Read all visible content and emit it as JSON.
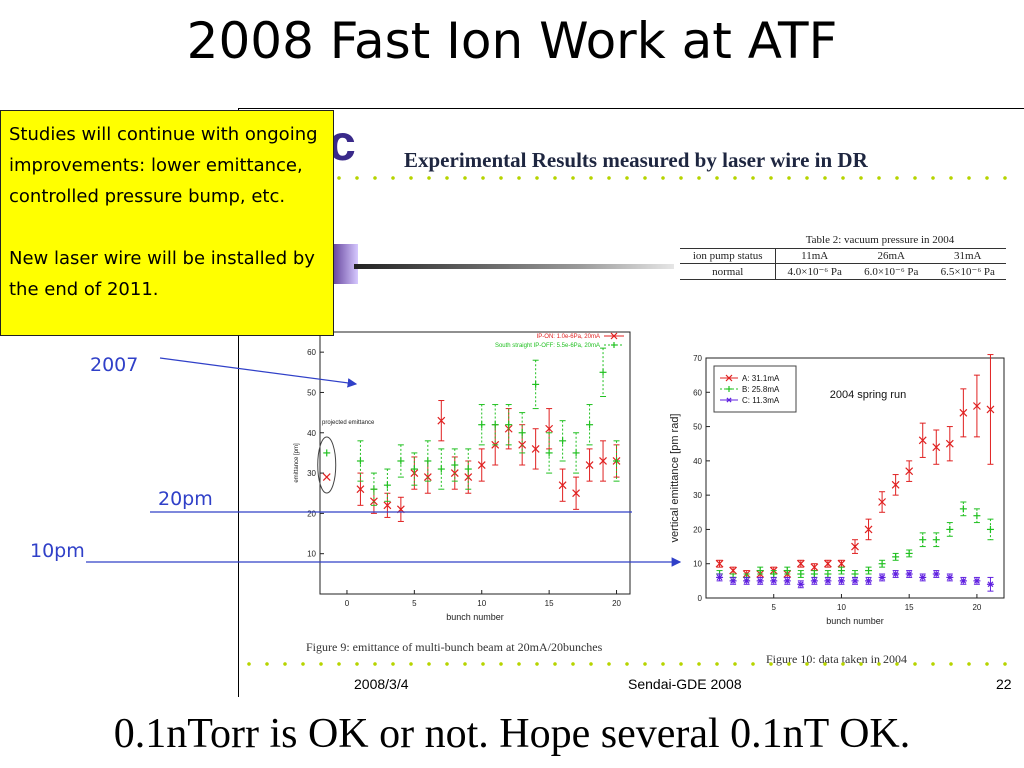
{
  "slide": {
    "title": "2008 Fast Ion Work at ATF",
    "bottom_text": "0.1nTorr is OK or not. Hope several 0.1nT OK."
  },
  "callout": {
    "paragraph1": "Studies will continue with ongoing improvements: lower emittance, controlled pressure bump, etc.",
    "paragraph2": "New laser wire will be installed by the end of 2011."
  },
  "annotations": {
    "label_2007": "2007",
    "label_20pm": "20pm",
    "label_10pm": "10pm"
  },
  "embedded_slide": {
    "header": "Experimental Results measured by laser wire in DR",
    "footer_date": "2008/3/4",
    "footer_event": "Sendai-GDE 2008",
    "page_number": "22",
    "fig9_caption": "Figure 9: emittance of multi-bunch beam at 20mA/20bunches",
    "fig10_caption": "Figure 10: data taken in 2004"
  },
  "vacuum_table": {
    "caption": "Table 2: vacuum pressure in 2004",
    "headers": [
      "ion pump status",
      "11mA",
      "26mA",
      "31mA"
    ],
    "row": [
      "normal",
      "4.0×10⁻⁶ Pa",
      "6.0×10⁻⁶ Pa",
      "6.5×10⁻⁶ Pa"
    ]
  },
  "colors": {
    "callout_bg": "#ffff00",
    "annotation": "#3040c8",
    "series_red": "#e02020",
    "series_green": "#20c020",
    "series_purple": "#6020e0",
    "dots": "#b7d400"
  },
  "chart_data": [
    {
      "type": "scatter",
      "title": "",
      "xlabel": "bunch number",
      "ylabel": "emittance [pm]",
      "xlim": [
        -2,
        21
      ],
      "ylim": [
        0,
        65
      ],
      "xticks": [
        0,
        5,
        10,
        15,
        20
      ],
      "yticks": [
        10,
        20,
        30,
        40,
        50,
        60
      ],
      "inset_label": "projected emittance",
      "legend_position": "top-right",
      "series": [
        {
          "name": "IP-ON: 1.0e-6Pa, 20mA",
          "color": "#e02020",
          "x": [
            1,
            2,
            3,
            4,
            5,
            6,
            7,
            8,
            9,
            10,
            11,
            12,
            13,
            14,
            15,
            16,
            17,
            18,
            19,
            20
          ],
          "y": [
            26,
            23,
            22,
            21,
            30,
            29,
            43,
            30,
            29,
            32,
            37,
            41,
            37,
            36,
            41,
            27,
            25,
            32,
            33,
            33
          ],
          "err": [
            4,
            3,
            3,
            3,
            4,
            4,
            5,
            4,
            4,
            4,
            5,
            5,
            5,
            5,
            5,
            4,
            4,
            4,
            5,
            4
          ]
        },
        {
          "name": "South straight IP-OFF: 5.5e-6Pa, 20mA",
          "color": "#20c020",
          "x": [
            1,
            2,
            3,
            4,
            5,
            6,
            7,
            8,
            9,
            10,
            11,
            12,
            13,
            14,
            15,
            16,
            17,
            18,
            19,
            20
          ],
          "y": [
            33,
            26,
            27,
            33,
            31,
            33,
            31,
            32,
            31,
            42,
            42,
            42,
            40,
            52,
            35,
            38,
            35,
            42,
            55,
            33
          ],
          "err": [
            5,
            4,
            4,
            4,
            4,
            5,
            5,
            4,
            5,
            5,
            5,
            5,
            5,
            6,
            5,
            5,
            5,
            5,
            6,
            5
          ]
        }
      ],
      "projected": [
        {
          "series": "IP-ON: 1.0e-6Pa, 20mA",
          "y": 29
        },
        {
          "series": "South straight IP-OFF: 5.5e-6Pa, 20mA",
          "y": 35
        }
      ]
    },
    {
      "type": "scatter",
      "title": "2004 spring run",
      "xlabel": "bunch number",
      "ylabel": "vertical emittance [pm rad]",
      "xlim": [
        0,
        22
      ],
      "ylim": [
        0,
        70
      ],
      "xticks": [
        5,
        10,
        15,
        20
      ],
      "yticks": [
        0,
        10,
        20,
        30,
        40,
        50,
        60,
        70
      ],
      "legend_position": "top-left",
      "series": [
        {
          "name": "A: 31.1mA",
          "color": "#e02020",
          "x": [
            1,
            2,
            3,
            4,
            5,
            6,
            7,
            8,
            9,
            10,
            11,
            12,
            13,
            14,
            15,
            16,
            17,
            18,
            19,
            20,
            21
          ],
          "y": [
            10,
            8,
            7,
            7,
            8,
            7,
            10,
            9,
            10,
            10,
            15,
            20,
            28,
            33,
            37,
            46,
            44,
            45,
            54,
            56,
            55
          ],
          "err": [
            1,
            1,
            1,
            1,
            1,
            1,
            1,
            1,
            1,
            1,
            2,
            3,
            3,
            3,
            3,
            5,
            5,
            5,
            7,
            9,
            16
          ]
        },
        {
          "name": "B: 25.8mA",
          "color": "#20c020",
          "x": [
            1,
            2,
            3,
            4,
            5,
            6,
            7,
            8,
            9,
            10,
            11,
            12,
            13,
            14,
            15,
            16,
            17,
            18,
            19,
            20,
            21
          ],
          "y": [
            7,
            6,
            6,
            8,
            7,
            8,
            7,
            7,
            7,
            8,
            7,
            8,
            10,
            12,
            13,
            17,
            17,
            20,
            26,
            24,
            20
          ],
          "err": [
            1,
            1,
            1,
            1,
            1,
            1,
            1,
            1,
            1,
            1,
            1,
            1,
            1,
            1,
            1,
            2,
            2,
            2,
            2,
            2,
            3
          ]
        },
        {
          "name": "C: 11.3mA",
          "color": "#6020e0",
          "x": [
            1,
            2,
            3,
            4,
            5,
            6,
            7,
            8,
            9,
            10,
            11,
            12,
            13,
            14,
            15,
            16,
            17,
            18,
            19,
            20,
            21
          ],
          "y": [
            6,
            5,
            5,
            5,
            5,
            5,
            4,
            5,
            5,
            5,
            5,
            5,
            6,
            7,
            7,
            6,
            7,
            6,
            5,
            5,
            4
          ],
          "err": [
            1,
            1,
            1,
            1,
            1,
            1,
            1,
            1,
            1,
            1,
            1,
            1,
            1,
            1,
            1,
            1,
            1,
            1,
            1,
            1,
            2
          ]
        }
      ]
    }
  ]
}
